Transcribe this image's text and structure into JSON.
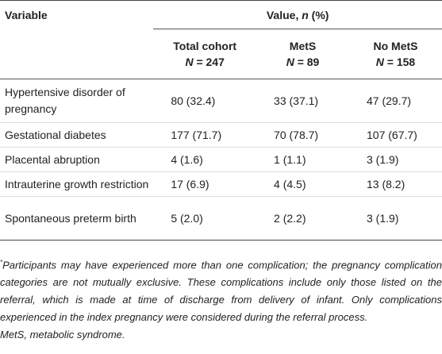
{
  "table": {
    "header": {
      "variable": "Variable",
      "value": [
        "Value, ",
        "n",
        " (%)"
      ],
      "columns": [
        {
          "name": "Total cohort",
          "n": [
            "N",
            " = 247"
          ]
        },
        {
          "name": "MetS",
          "n": [
            "N",
            " = 89"
          ]
        },
        {
          "name": "No MetS",
          "n": [
            "N",
            " = 158"
          ]
        }
      ]
    },
    "rows": [
      [
        "Hypertensive disorder of pregnancy",
        "80 (32.4)",
        "33 (37.1)",
        "47 (29.7)"
      ],
      [
        "Gestational diabetes",
        "177 (71.7)",
        "70 (78.7)",
        "107 (67.7)"
      ],
      [
        "Placental abruption",
        "4 (1.6)",
        "1 (1.1)",
        "3 (1.9)"
      ],
      [
        "Intrauterine growth restriction",
        "17 (6.9)",
        "4 (4.5)",
        "13 (8.2)"
      ],
      [
        "Spontaneous preterm birth",
        "5 (2.0)",
        "2 (2.2)",
        "3 (1.9)"
      ]
    ]
  },
  "footnote": {
    "marker": "*",
    "text": "Participants may have experienced more than one complication; the pregnancy complication categories are not mutually exclusive. These complications include only those listed on the referral, which is made at time of discharge from delivery of infant. Only complications experienced in the index pregnancy were considered during the referral process.",
    "abbreviation": "MetS, metabolic syndrome."
  }
}
